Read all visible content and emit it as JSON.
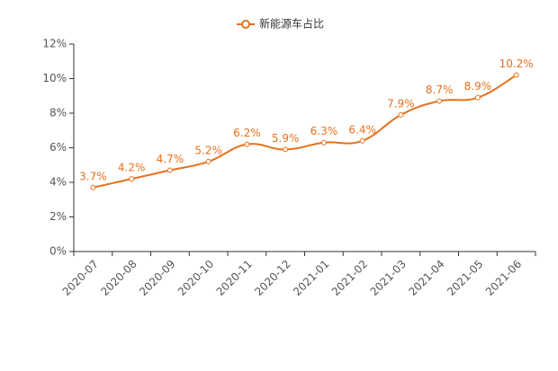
{
  "chart_data": {
    "type": "line",
    "categories": [
      "2020-07",
      "2020-08",
      "2020-09",
      "2020-10",
      "2020-11",
      "2020-12",
      "2021-01",
      "2021-02",
      "2021-03",
      "2021-04",
      "2021-05",
      "2021-06"
    ],
    "series": [
      {
        "name": "新能源车占比",
        "color": "#e8711c",
        "values": [
          3.7,
          4.2,
          4.7,
          5.2,
          6.2,
          5.9,
          6.3,
          6.4,
          7.9,
          8.7,
          8.9,
          10.2
        ],
        "value_labels": [
          "3.7%",
          "4.2%",
          "4.7%",
          "5.2%",
          "6.2%",
          "5.9%",
          "6.3%",
          "6.4%",
          "7.9%",
          "8.7%",
          "8.9%",
          "10.2%"
        ]
      }
    ],
    "ylim": [
      0,
      12
    ],
    "yticks": [
      {
        "value": 0,
        "label": "0%"
      },
      {
        "value": 2,
        "label": "2%"
      },
      {
        "value": 4,
        "label": "4%"
      },
      {
        "value": 6,
        "label": "6%"
      },
      {
        "value": 8,
        "label": "8%"
      },
      {
        "value": 10,
        "label": "10%"
      },
      {
        "value": 12,
        "label": "12%"
      }
    ],
    "smooth": true,
    "legend": "top"
  }
}
